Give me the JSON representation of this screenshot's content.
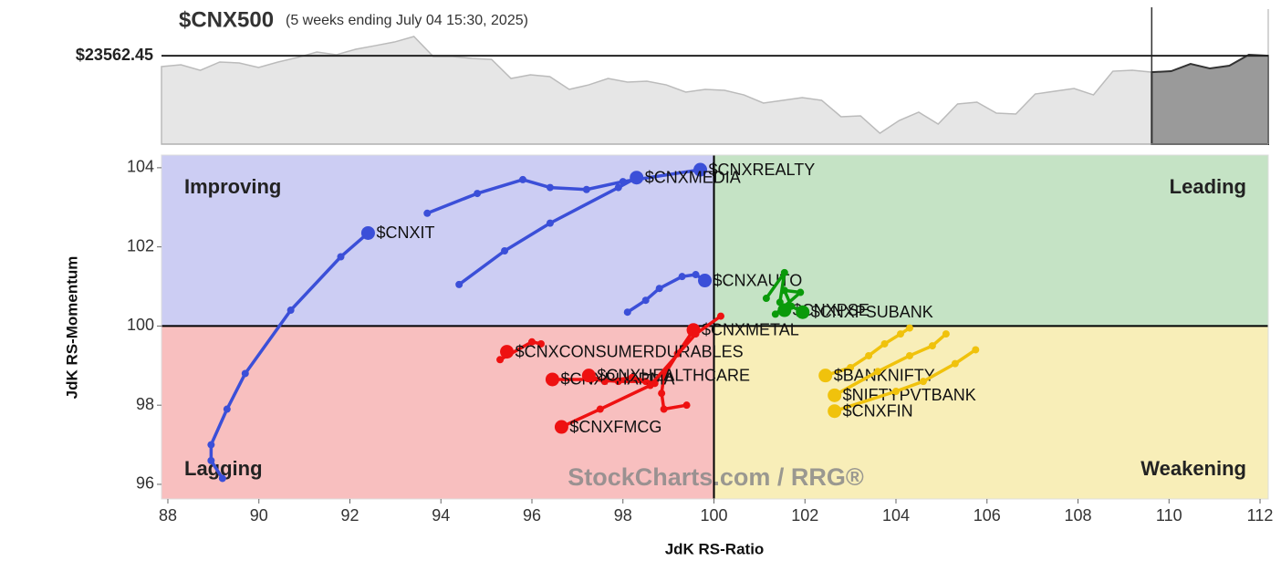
{
  "chart_data": [
    {
      "type": "area",
      "title": "$CNX500",
      "subtitle": "(5 weeks ending July 04 15:30, 2025)",
      "last_price": 23562.45,
      "last_price_label": "$23562.45",
      "ylim": [
        22600,
        24070
      ],
      "history": {
        "color": "#e6e6e6",
        "values": [
          23444,
          23464,
          23404,
          23494,
          23484,
          23434,
          23494,
          23543,
          23603,
          23573,
          23633,
          23672,
          23712,
          23772,
          23553,
          23553,
          23533,
          23523,
          23315,
          23355,
          23335,
          23196,
          23245,
          23315,
          23275,
          23285,
          23245,
          23166,
          23196,
          23186,
          23136,
          23047,
          23077,
          23106,
          23077,
          22898,
          22908,
          22719,
          22858,
          22948,
          22818,
          23037,
          23057,
          22938,
          22928,
          23146,
          23176,
          23206,
          23136,
          23394,
          23404,
          23384
        ]
      },
      "recent": {
        "color": "#9a9a9a",
        "values": [
          23394,
          23474,
          23424,
          23454,
          23573,
          23563
        ]
      }
    },
    {
      "type": "scatter",
      "xlabel": "JdK RS-Ratio",
      "ylabel": "JdK RS-Momentum",
      "xlim": [
        87.86,
        112.18
      ],
      "ylim": [
        95.63,
        104.32
      ],
      "xticks": [
        88,
        90,
        92,
        94,
        96,
        98,
        100,
        102,
        104,
        106,
        108,
        110,
        112
      ],
      "yticks": [
        96,
        98,
        100,
        102,
        104
      ],
      "center": {
        "x": 100,
        "y": 100
      },
      "quadrants": {
        "improving": {
          "label": "Improving",
          "color": "#cccdf3",
          "text_color": "#3a50d0"
        },
        "leading": {
          "label": "Leading",
          "color": "#c5e3c5",
          "text_color": "#15881a"
        },
        "lagging": {
          "label": "Lagging",
          "color": "#f8bfbf",
          "text_color": "#e52222"
        },
        "weakening": {
          "label": "Weakening",
          "color": "#f8eeb8",
          "text_color": "#e8c223"
        }
      },
      "watermark": "StockCharts.com / RRG®",
      "series": [
        {
          "name": "$CNXREALTY",
          "color": "#3b4fd8",
          "x": [
            93.7,
            94.8,
            95.8,
            96.4,
            97.2,
            98.0,
            99.7
          ],
          "y": [
            102.85,
            103.35,
            103.7,
            103.5,
            103.45,
            103.65,
            103.95
          ]
        },
        {
          "name": "$CNXMEDIA",
          "color": "#3b4fd8",
          "x": [
            94.4,
            95.4,
            96.4,
            97.9,
            98.3
          ],
          "y": [
            101.05,
            101.9,
            102.6,
            103.5,
            103.75
          ]
        },
        {
          "name": "$CNXIT",
          "color": "#3b4fd8",
          "x": [
            89.2,
            88.95,
            88.95,
            89.3,
            89.7,
            90.7,
            91.8,
            92.4
          ],
          "y": [
            96.15,
            96.6,
            97.0,
            97.9,
            98.8,
            100.4,
            101.75,
            102.35
          ]
        },
        {
          "name": "$CNXAUTO",
          "color": "#3b4fd8",
          "x": [
            98.1,
            98.5,
            98.8,
            99.3,
            99.6,
            99.8
          ],
          "y": [
            100.35,
            100.65,
            100.95,
            101.25,
            101.3,
            101.15
          ]
        },
        {
          "name": "$CNXPSE",
          "color": "#0a9a0a",
          "x": [
            101.15,
            101.55,
            101.45,
            101.55
          ],
          "y": [
            100.7,
            101.35,
            100.6,
            100.4
          ]
        },
        {
          "name": "$CNXPSUBANK",
          "color": "#0a9a0a",
          "x": [
            101.35,
            101.9,
            101.55,
            101.7,
            101.95
          ],
          "y": [
            100.3,
            100.85,
            100.9,
            100.5,
            100.35
          ]
        },
        {
          "name": "$CNXMETAL",
          "color": "#ee1111",
          "x": [
            99.4,
            98.9,
            98.85,
            98.9,
            99.2,
            99.55
          ],
          "y": [
            98.0,
            97.9,
            98.3,
            98.75,
            99.3,
            99.9
          ]
        },
        {
          "name": "$CNXCONSUMERDURABLES",
          "color": "#ee1111",
          "x": [
            96.2,
            96.0,
            95.3,
            95.5,
            95.45
          ],
          "y": [
            99.55,
            99.6,
            99.15,
            99.3,
            99.35
          ]
        },
        {
          "name": "$CNXPHARMA",
          "color": "#ee1111",
          "x": [
            98.5,
            97.9,
            97.3,
            96.45
          ],
          "y": [
            98.6,
            98.6,
            98.65,
            98.65
          ]
        },
        {
          "name": "$CNXHEALTHCARE",
          "color": "#ee1111",
          "x": [
            98.7,
            98.2,
            97.6,
            97.25
          ],
          "y": [
            98.55,
            98.7,
            98.6,
            98.75
          ]
        },
        {
          "name": "$CNXFMCG",
          "color": "#ee1111",
          "x": [
            100.15,
            99.6,
            98.6,
            97.5,
            96.65
          ],
          "y": [
            100.25,
            99.8,
            98.5,
            97.9,
            97.45
          ]
        },
        {
          "name": "$BANKNIFTY",
          "color": "#f0c20c",
          "x": [
            104.3,
            104.1,
            103.75,
            103.4,
            103.0,
            102.45
          ],
          "y": [
            99.95,
            99.8,
            99.55,
            99.25,
            98.95,
            98.75
          ]
        },
        {
          "name": "$NIFTYPVTBANK",
          "color": "#f0c20c",
          "x": [
            105.1,
            104.8,
            104.3,
            103.6,
            102.65
          ],
          "y": [
            99.8,
            99.5,
            99.25,
            98.85,
            98.25
          ]
        },
        {
          "name": "$CNXFIN",
          "color": "#f0c20c",
          "x": [
            105.75,
            105.3,
            104.6,
            104.0,
            102.65
          ],
          "y": [
            99.4,
            99.05,
            98.6,
            98.35,
            97.85
          ]
        }
      ]
    }
  ]
}
